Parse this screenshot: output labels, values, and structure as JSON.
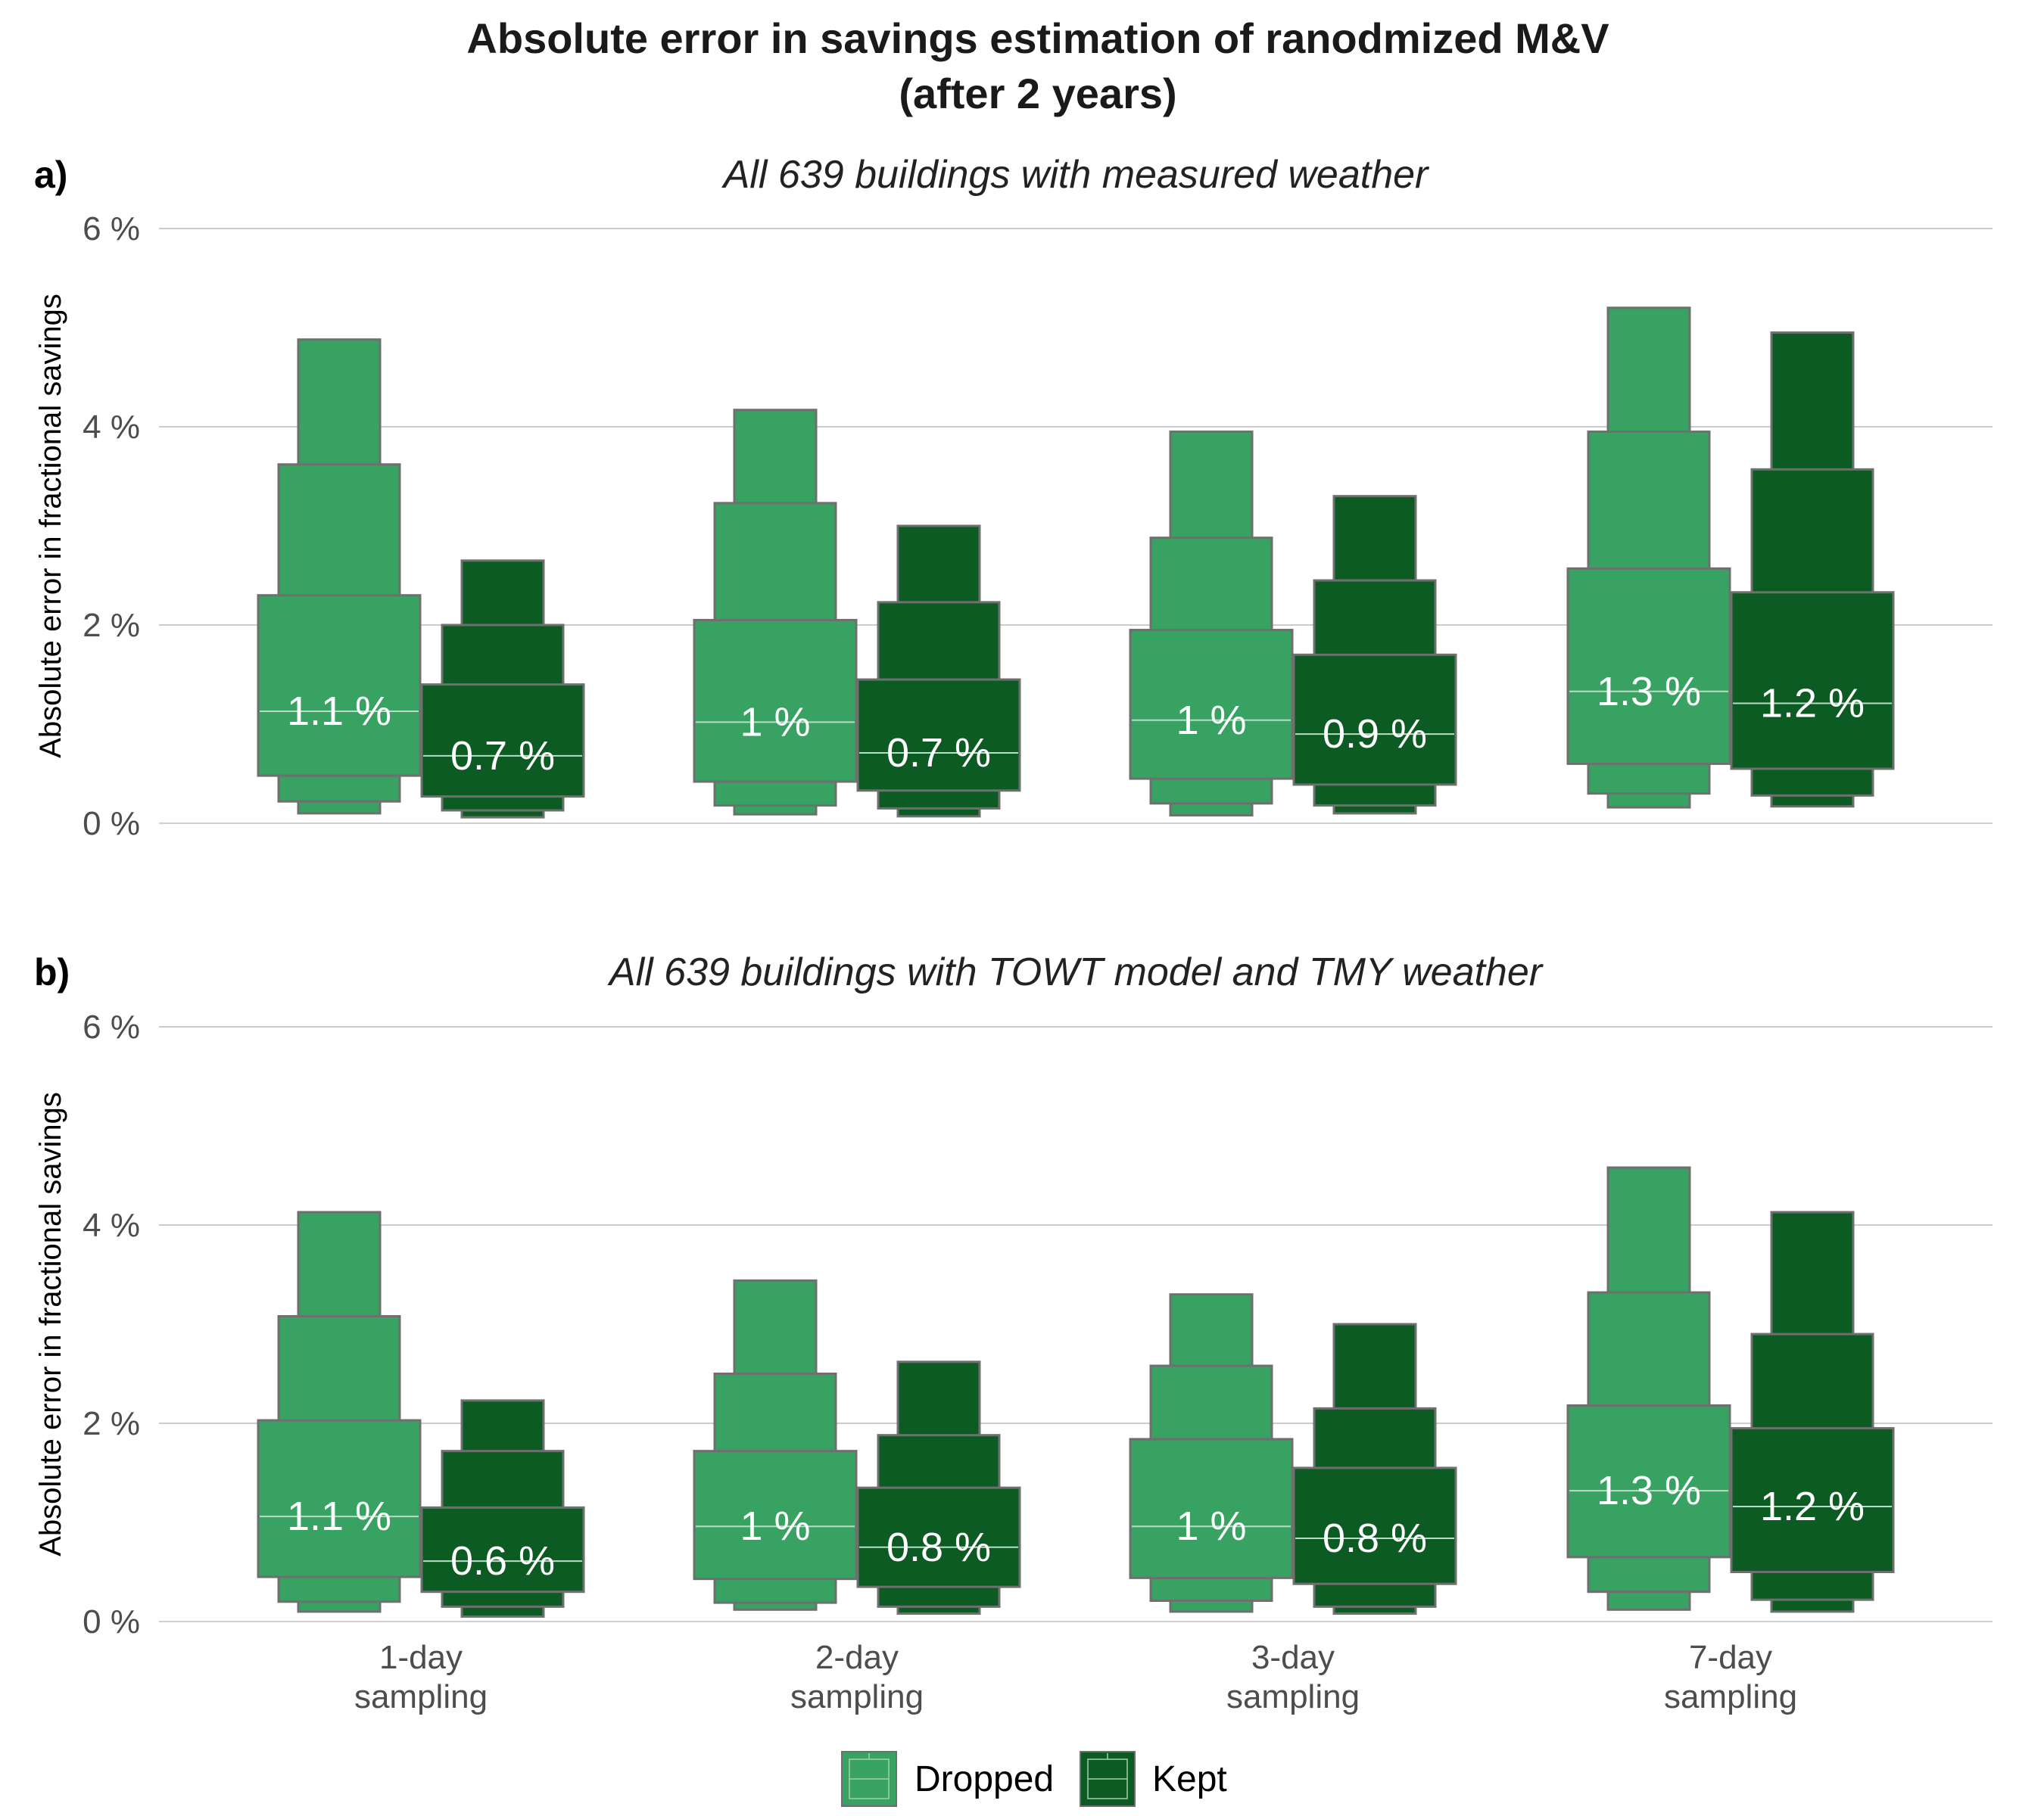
{
  "title_line1": "Absolute error in savings estimation of ranodmized M&V",
  "title_line2": "(after 2 years)",
  "chart_data": {
    "type": "letter-value boxplot",
    "categories": [
      "1-day\nsampling",
      "2-day\nsampling",
      "3-day\nsampling",
      "7-day\nsampling"
    ],
    "ylabel": "Absolute error in fractional savings",
    "ylim": [
      0,
      6
    ],
    "yticks": [
      "0 %",
      "2 %",
      "4 %",
      "6 %"
    ],
    "grid": true,
    "legend": {
      "position": "bottom",
      "entries": [
        {
          "name": "Dropped",
          "color": "#38a263"
        },
        {
          "name": "Kept",
          "color": "#0c5b23"
        }
      ]
    },
    "box_outline_color": "#6f6f6f",
    "panels": [
      {
        "tag": "a)",
        "subtitle": "All 639 buildings with measured weather",
        "series": [
          {
            "name": "Dropped",
            "color": "#38a263",
            "groups": [
              {
                "median": 1.13,
                "label": "1.1 %",
                "levels": [
                  [
                    0.48,
                    2.3
                  ],
                  [
                    0.22,
                    3.62
                  ],
                  [
                    0.1,
                    4.88
                  ]
                ]
              },
              {
                "median": 1.02,
                "label": "1 %",
                "levels": [
                  [
                    0.42,
                    2.05
                  ],
                  [
                    0.18,
                    3.23
                  ],
                  [
                    0.09,
                    4.17
                  ]
                ]
              },
              {
                "median": 1.04,
                "label": "1 %",
                "levels": [
                  [
                    0.45,
                    1.95
                  ],
                  [
                    0.2,
                    2.88
                  ],
                  [
                    0.08,
                    3.95
                  ]
                ]
              },
              {
                "median": 1.33,
                "label": "1.3 %",
                "levels": [
                  [
                    0.6,
                    2.57
                  ],
                  [
                    0.3,
                    3.95
                  ],
                  [
                    0.16,
                    5.2
                  ]
                ]
              }
            ]
          },
          {
            "name": "Kept",
            "color": "#0c5b23",
            "groups": [
              {
                "median": 0.68,
                "label": "0.7 %",
                "levels": [
                  [
                    0.27,
                    1.4
                  ],
                  [
                    0.13,
                    2.0
                  ],
                  [
                    0.06,
                    2.65
                  ]
                ]
              },
              {
                "median": 0.71,
                "label": "0.7 %",
                "levels": [
                  [
                    0.33,
                    1.45
                  ],
                  [
                    0.15,
                    2.23
                  ],
                  [
                    0.07,
                    3.0
                  ]
                ]
              },
              {
                "median": 0.9,
                "label": "0.9 %",
                "levels": [
                  [
                    0.39,
                    1.7
                  ],
                  [
                    0.18,
                    2.45
                  ],
                  [
                    0.1,
                    3.3
                  ]
                ]
              },
              {
                "median": 1.21,
                "label": "1.2 %",
                "levels": [
                  [
                    0.55,
                    2.33
                  ],
                  [
                    0.28,
                    3.57
                  ],
                  [
                    0.17,
                    4.95
                  ]
                ]
              }
            ]
          }
        ]
      },
      {
        "tag": "b)",
        "subtitle": "All 639 buildings with TOWT model and TMY weather",
        "series": [
          {
            "name": "Dropped",
            "color": "#38a263",
            "groups": [
              {
                "median": 1.06,
                "label": "1.1 %",
                "levels": [
                  [
                    0.45,
                    2.03
                  ],
                  [
                    0.2,
                    3.08
                  ],
                  [
                    0.1,
                    4.13
                  ]
                ]
              },
              {
                "median": 0.96,
                "label": "1 %",
                "levels": [
                  [
                    0.43,
                    1.72
                  ],
                  [
                    0.19,
                    2.5
                  ],
                  [
                    0.12,
                    3.44
                  ]
                ]
              },
              {
                "median": 0.96,
                "label": "1 %",
                "levels": [
                  [
                    0.44,
                    1.84
                  ],
                  [
                    0.21,
                    2.58
                  ],
                  [
                    0.1,
                    3.3
                  ]
                ]
              },
              {
                "median": 1.32,
                "label": "1.3 %",
                "levels": [
                  [
                    0.65,
                    2.18
                  ],
                  [
                    0.3,
                    3.32
                  ],
                  [
                    0.12,
                    4.58
                  ]
                ]
              }
            ]
          },
          {
            "name": "Kept",
            "color": "#0c5b23",
            "groups": [
              {
                "median": 0.61,
                "label": "0.6 %",
                "levels": [
                  [
                    0.3,
                    1.15
                  ],
                  [
                    0.15,
                    1.72
                  ],
                  [
                    0.05,
                    2.23
                  ]
                ]
              },
              {
                "median": 0.75,
                "label": "0.8 %",
                "levels": [
                  [
                    0.35,
                    1.35
                  ],
                  [
                    0.15,
                    1.88
                  ],
                  [
                    0.08,
                    2.62
                  ]
                ]
              },
              {
                "median": 0.84,
                "label": "0.8 %",
                "levels": [
                  [
                    0.38,
                    1.55
                  ],
                  [
                    0.15,
                    2.15
                  ],
                  [
                    0.08,
                    3.0
                  ]
                ]
              },
              {
                "median": 1.16,
                "label": "1.2 %",
                "levels": [
                  [
                    0.5,
                    1.95
                  ],
                  [
                    0.22,
                    2.9
                  ],
                  [
                    0.1,
                    4.13
                  ]
                ]
              }
            ]
          }
        ]
      }
    ]
  }
}
